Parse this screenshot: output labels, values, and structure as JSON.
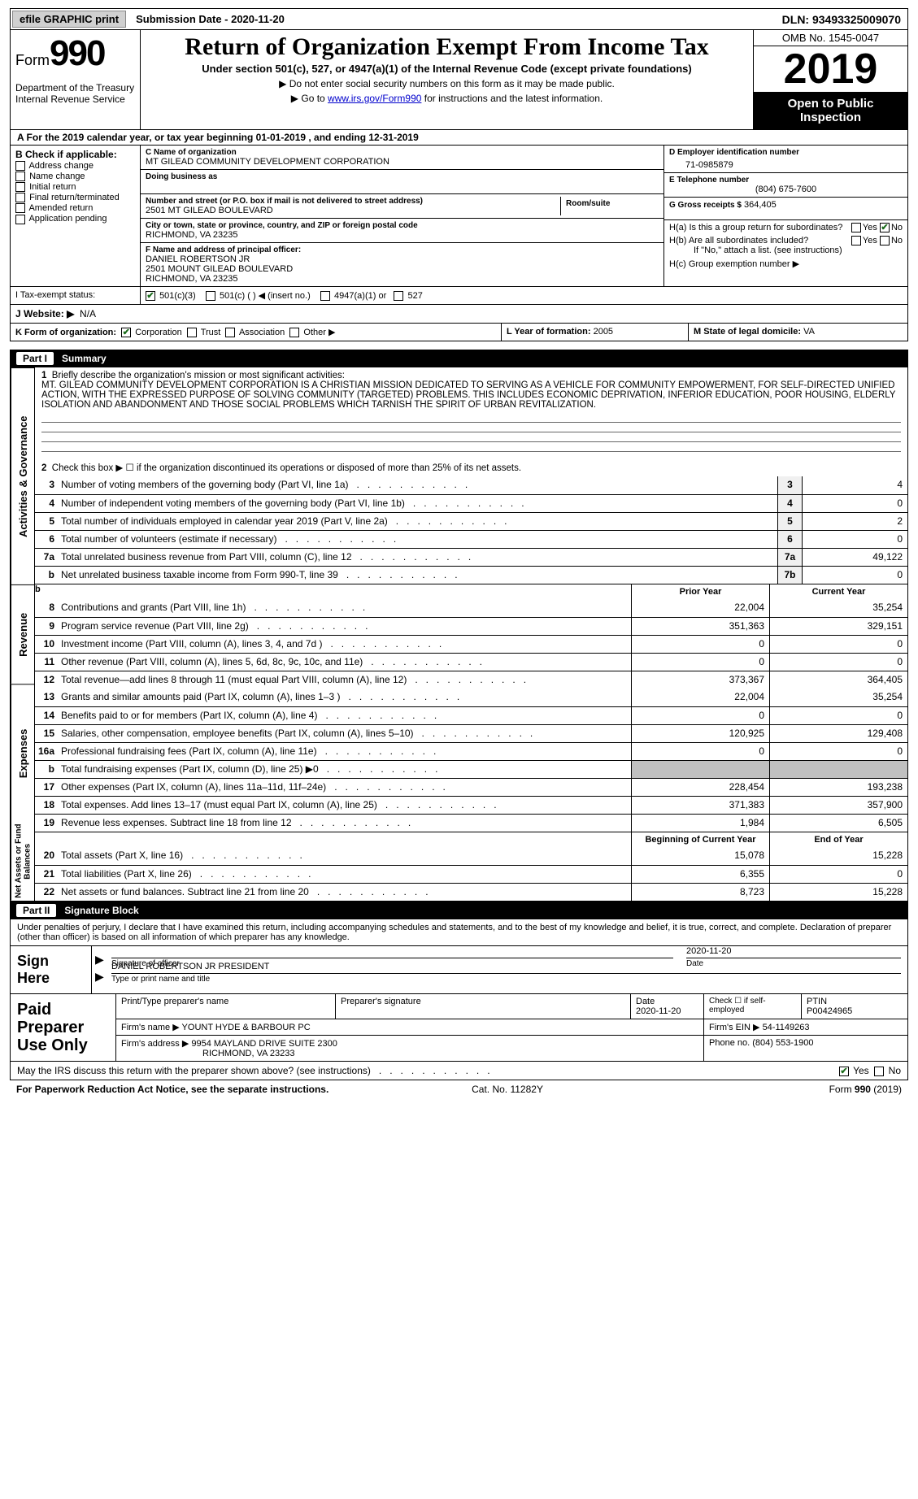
{
  "topbar": {
    "efile_label": "efile GRAPHIC print",
    "submission_label": "Submission Date - 2020-11-20",
    "dln_label": "DLN: 93493325009070"
  },
  "header": {
    "form_prefix": "Form",
    "form_number": "990",
    "dept": "Department of the Treasury\nInternal Revenue Service",
    "title": "Return of Organization Exempt From Income Tax",
    "subtitle": "Under section 501(c), 527, or 4947(a)(1) of the Internal Revenue Code (except private foundations)",
    "note1": "▶ Do not enter social security numbers on this form as it may be made public.",
    "note2_pre": "▶ Go to ",
    "note2_link": "www.irs.gov/Form990",
    "note2_post": " for instructions and the latest information.",
    "omb": "OMB No. 1545-0047",
    "year": "2019",
    "inspection": "Open to Public Inspection"
  },
  "row_a": "A  For the 2019 calendar year, or tax year beginning 01-01-2019       , and ending 12-31-2019",
  "section_b": {
    "header": "B Check if applicable:",
    "items": [
      "Address change",
      "Name change",
      "Initial return",
      "Final return/terminated",
      "Amended return",
      "Application pending"
    ]
  },
  "section_c": {
    "name_label": "C Name of organization",
    "name": "MT GILEAD COMMUNITY DEVELOPMENT CORPORATION",
    "dba_label": "Doing business as",
    "addr_label": "Number and street (or P.O. box if mail is not delivered to street address)",
    "room_label": "Room/suite",
    "addr": "2501 MT GILEAD BOULEVARD",
    "city_label": "City or town, state or province, country, and ZIP or foreign postal code",
    "city": "RICHMOND, VA  23235"
  },
  "section_d": {
    "label": "D Employer identification number",
    "value": "71-0985879"
  },
  "section_e": {
    "label": "E Telephone number",
    "value": "(804) 675-7600"
  },
  "section_g": {
    "label": "G Gross receipts $",
    "value": "364,405"
  },
  "section_f": {
    "label": "F  Name and address of principal officer:",
    "name": "DANIEL ROBERTSON JR",
    "addr1": "2501 MOUNT GILEAD BOULEVARD",
    "addr2": "RICHMOND, VA  23235"
  },
  "section_h": {
    "ha": "H(a)  Is this a group return for subordinates?",
    "hb": "H(b)  Are all subordinates included?",
    "hb_note": "If \"No,\" attach a list. (see instructions)",
    "hc": "H(c)  Group exemption number ▶",
    "yes": "Yes",
    "no": "No"
  },
  "section_i": {
    "label": "I   Tax-exempt status:",
    "opts": [
      "501(c)(3)",
      "501(c) (  ) ◀ (insert no.)",
      "4947(a)(1) or",
      "527"
    ]
  },
  "section_j": {
    "label": "J   Website: ▶",
    "value": "N/A"
  },
  "section_k": {
    "label": "K Form of organization:",
    "opts": [
      "Corporation",
      "Trust",
      "Association",
      "Other ▶"
    ]
  },
  "section_l": {
    "label": "L Year of formation:",
    "value": "2005"
  },
  "section_m": {
    "label": "M State of legal domicile:",
    "value": "VA"
  },
  "part1": {
    "num": "Part I",
    "title": "Summary",
    "tabs": {
      "gov": "Activities & Governance",
      "rev": "Revenue",
      "exp": "Expenses",
      "net": "Net Assets or Fund Balances"
    },
    "line1_label": "Briefly describe the organization's mission or most significant activities:",
    "mission": "MT. GILEAD COMMUNITY DEVELOPMENT CORPORATION IS A CHRISTIAN MISSION DEDICATED TO SERVING AS A VEHICLE FOR COMMUNITY EMPOWERMENT, FOR SELF-DIRECTED UNIFIED ACTION, WITH THE EXPRESSED PURPOSE OF SOLVING COMMUNITY (TARGETED) PROBLEMS. THIS INCLUDES ECONOMIC DEPRIVATION, INFERIOR EDUCATION, POOR HOUSING, ELDERLY ISOLATION AND ABANDONMENT AND THOSE SOCIAL PROBLEMS WHICH TARNISH THE SPIRIT OF URBAN REVITALIZATION.",
    "line2": "Check this box ▶ ☐  if the organization discontinued its operations or disposed of more than 25% of its net assets.",
    "rows_gov": [
      {
        "n": "3",
        "d": "Number of voting members of the governing body (Part VI, line 1a)",
        "box": "3",
        "v": "4"
      },
      {
        "n": "4",
        "d": "Number of independent voting members of the governing body (Part VI, line 1b)",
        "box": "4",
        "v": "0"
      },
      {
        "n": "5",
        "d": "Total number of individuals employed in calendar year 2019 (Part V, line 2a)",
        "box": "5",
        "v": "2"
      },
      {
        "n": "6",
        "d": "Total number of volunteers (estimate if necessary)",
        "box": "6",
        "v": "0"
      },
      {
        "n": "7a",
        "d": "Total unrelated business revenue from Part VIII, column (C), line 12",
        "box": "7a",
        "v": "49,122"
      },
      {
        "n": "b",
        "d": "Net unrelated business taxable income from Form 990-T, line 39",
        "box": "7b",
        "v": "0"
      }
    ],
    "col_hdr": {
      "prior": "Prior Year",
      "current": "Current Year"
    },
    "rows_rev": [
      {
        "n": "8",
        "d": "Contributions and grants (Part VIII, line 1h)",
        "p": "22,004",
        "c": "35,254"
      },
      {
        "n": "9",
        "d": "Program service revenue (Part VIII, line 2g)",
        "p": "351,363",
        "c": "329,151"
      },
      {
        "n": "10",
        "d": "Investment income (Part VIII, column (A), lines 3, 4, and 7d )",
        "p": "0",
        "c": "0"
      },
      {
        "n": "11",
        "d": "Other revenue (Part VIII, column (A), lines 5, 6d, 8c, 9c, 10c, and 11e)",
        "p": "0",
        "c": "0"
      },
      {
        "n": "12",
        "d": "Total revenue—add lines 8 through 11 (must equal Part VIII, column (A), line 12)",
        "p": "373,367",
        "c": "364,405"
      }
    ],
    "rows_exp": [
      {
        "n": "13",
        "d": "Grants and similar amounts paid (Part IX, column (A), lines 1–3 )",
        "p": "22,004",
        "c": "35,254"
      },
      {
        "n": "14",
        "d": "Benefits paid to or for members (Part IX, column (A), line 4)",
        "p": "0",
        "c": "0"
      },
      {
        "n": "15",
        "d": "Salaries, other compensation, employee benefits (Part IX, column (A), lines 5–10)",
        "p": "120,925",
        "c": "129,408"
      },
      {
        "n": "16a",
        "d": "Professional fundraising fees (Part IX, column (A), line 11e)",
        "p": "0",
        "c": "0"
      },
      {
        "n": "b",
        "d": "Total fundraising expenses (Part IX, column (D), line 25) ▶0",
        "p": "",
        "c": "",
        "shaded": true
      },
      {
        "n": "17",
        "d": "Other expenses (Part IX, column (A), lines 11a–11d, 11f–24e)",
        "p": "228,454",
        "c": "193,238"
      },
      {
        "n": "18",
        "d": "Total expenses. Add lines 13–17 (must equal Part IX, column (A), line 25)",
        "p": "371,383",
        "c": "357,900"
      },
      {
        "n": "19",
        "d": "Revenue less expenses. Subtract line 18 from line 12",
        "p": "1,984",
        "c": "6,505"
      }
    ],
    "col_hdr2": {
      "begin": "Beginning of Current Year",
      "end": "End of Year"
    },
    "rows_net": [
      {
        "n": "20",
        "d": "Total assets (Part X, line 16)",
        "p": "15,078",
        "c": "15,228"
      },
      {
        "n": "21",
        "d": "Total liabilities (Part X, line 26)",
        "p": "6,355",
        "c": "0"
      },
      {
        "n": "22",
        "d": "Net assets or fund balances. Subtract line 21 from line 20",
        "p": "8,723",
        "c": "15,228"
      }
    ]
  },
  "part2": {
    "num": "Part II",
    "title": "Signature Block",
    "declaration": "Under penalties of perjury, I declare that I have examined this return, including accompanying schedules and statements, and to the best of my knowledge and belief, it is true, correct, and complete. Declaration of preparer (other than officer) is based on all information of which preparer has any knowledge.",
    "sign_here": "Sign Here",
    "sig_officer": "Signature of officer",
    "sig_date": "Date",
    "sig_date_val": "2020-11-20",
    "officer_name": "DANIEL ROBERTSON JR  PRESIDENT",
    "officer_label": "Type or print name and title",
    "paid_label": "Paid Preparer Use Only",
    "prep_hdr": {
      "name": "Print/Type preparer's name",
      "sig": "Preparer's signature",
      "date": "Date",
      "date_val": "2020-11-20",
      "check": "Check ☐ if self-employed",
      "ptin": "PTIN",
      "ptin_val": "P00424965"
    },
    "firm_name_label": "Firm's name      ▶",
    "firm_name": "YOUNT HYDE & BARBOUR PC",
    "firm_ein_label": "Firm's EIN ▶",
    "firm_ein": "54-1149263",
    "firm_addr_label": "Firm's address ▶",
    "firm_addr1": "9954 MAYLAND DRIVE SUITE 2300",
    "firm_addr2": "RICHMOND, VA  23233",
    "phone_label": "Phone no.",
    "phone": "(804) 553-1900",
    "discuss": "May the IRS discuss this return with the preparer shown above? (see instructions)",
    "yes": "Yes",
    "no": "No"
  },
  "footer": {
    "left": "For Paperwork Reduction Act Notice, see the separate instructions.",
    "mid": "Cat. No. 11282Y",
    "right_pre": "Form ",
    "right_bold": "990",
    "right_post": " (2019)"
  }
}
